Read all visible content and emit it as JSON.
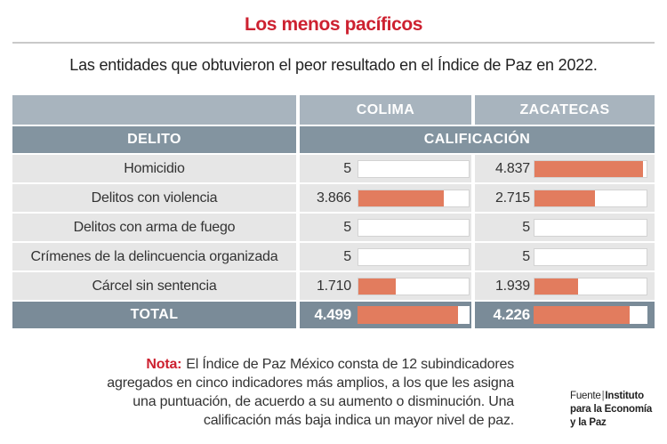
{
  "colors": {
    "accent": "#cd2130",
    "bar": "#e27c5e",
    "header_light": "#a8b4be",
    "header_dark": "#8394a0",
    "total_row": "#7a8b98",
    "row": "#e6e6e6"
  },
  "chart_data": {
    "type": "table",
    "title": "Los menos pacíficos",
    "subtitle": "Las entidades que obtuvieron el peor resultado en el Índice de Paz en 2022.",
    "row_header": "DELITO",
    "value_header": "CALIFICACIÓN",
    "columns": [
      "COLIMA",
      "ZACATECAS"
    ],
    "rows": [
      {
        "label": "Homicidio",
        "values": [
          5,
          4.837
        ]
      },
      {
        "label": "Delitos con violencia",
        "values": [
          3.866,
          2.715
        ]
      },
      {
        "label": "Delitos con arma de fuego",
        "values": [
          5,
          5
        ]
      },
      {
        "label": "Crímenes de la delincuencia organizada",
        "values": [
          5,
          5
        ]
      },
      {
        "label": "Cárcel sin sentencia",
        "values": [
          1.71,
          1.939
        ]
      }
    ],
    "total": {
      "label": "TOTAL",
      "values": [
        4.499,
        4.226
      ]
    }
  },
  "note": {
    "label": "Nota:",
    "lines": [
      "El Índice de Paz México consta de 12 subindicadores",
      "agregados en cinco indicadores más amplios, a los que les asigna",
      "una puntuación, de acuerdo a su aumento o disminución. Una",
      "calificación más baja indica un mayor nivel de paz."
    ]
  },
  "source": {
    "label": "Fuente",
    "separator": "|",
    "lines": [
      "Instituto",
      "para la Economía",
      "y la Paz"
    ]
  }
}
